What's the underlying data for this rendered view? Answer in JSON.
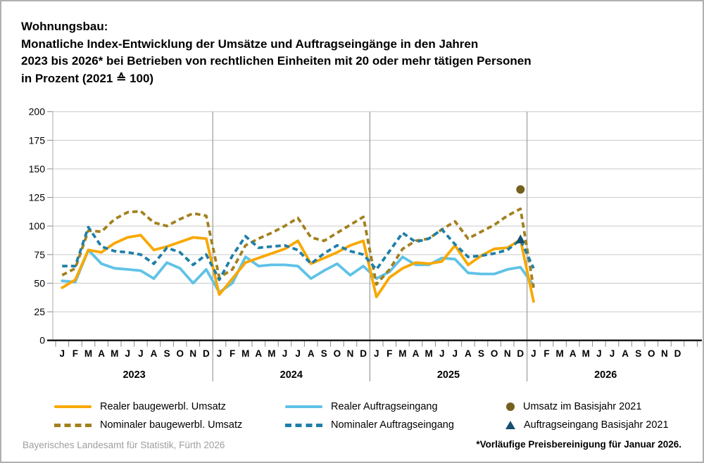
{
  "title": {
    "line1": "Wohnungsbau:",
    "line2": "Monatliche Index-Entwicklung der Umsätze und Auftragseingänge in den Jahren",
    "line3": "2023 bis 2026* bei Betrieben von rechtlichen Einheiten mit 20 oder mehr tätigen Personen",
    "line4": "in Prozent (2021 ≙ 100)"
  },
  "source": "Bayerisches Landesamt für Statistik, Fürth 2026",
  "footnote": "*Vorläufige Preisbereinigung für Januar 2026.",
  "style_colors": {
    "grid": "#C9C9C9",
    "year_separator": "#9B9B9B",
    "axis_line": "#1A1A1A",
    "y_axis_line": "#ABABAB",
    "tick": "#8A8A8A",
    "source_text": "#9E9E9E"
  },
  "chart_data": {
    "type": "line",
    "title": "Wohnungsbau: Monatliche Index-Entwicklung der Umsätze und Auftragseingänge 2023 bis 2026, in Prozent (2021 ≙ 100)",
    "xlabel": "",
    "ylabel": "",
    "ylim": [
      0,
      200
    ],
    "ytick_step": 25,
    "grid": "horizontal",
    "legend_position": "bottom",
    "month_labels": [
      "J",
      "F",
      "M",
      "A",
      "M",
      "J",
      "J",
      "A",
      "S",
      "O",
      "N",
      "D"
    ],
    "years": [
      "2023",
      "2024",
      "2025",
      "2026"
    ],
    "x_range_note": "monthly values Jan 2023 – Jan 2026",
    "series": [
      {
        "name": "Realer baugewerbl. Umsatz",
        "style": "solid",
        "color": "#F8A800",
        "values": [
          46,
          53,
          79,
          77,
          85,
          90,
          92,
          79,
          82,
          86,
          90,
          89,
          40,
          54,
          68,
          72,
          76,
          80,
          87,
          67,
          72,
          77,
          83,
          87,
          38,
          55,
          63,
          68,
          67,
          69,
          83,
          66,
          74,
          80,
          81,
          88,
          34
        ]
      },
      {
        "name": "Nominaler baugewerbl. Umsatz",
        "style": "dashed",
        "color": "#A2801E",
        "values": [
          57,
          63,
          96,
          95,
          106,
          112,
          113,
          103,
          100,
          106,
          111,
          109,
          55,
          62,
          83,
          89,
          94,
          100,
          107,
          90,
          87,
          94,
          101,
          108,
          49,
          62,
          80,
          87,
          89,
          97,
          104,
          89,
          95,
          101,
          109,
          115,
          46
        ]
      },
      {
        "name": "Realer Auftragseingang",
        "style": "solid",
        "color": "#5FC2E7",
        "values": [
          52,
          51,
          79,
          67,
          63,
          62,
          61,
          54,
          68,
          63,
          50,
          62,
          42,
          50,
          73,
          65,
          66,
          66,
          65,
          54,
          61,
          67,
          57,
          65,
          54,
          60,
          73,
          66,
          66,
          72,
          71,
          59,
          58,
          58,
          62,
          64,
          48
        ]
      },
      {
        "name": "Nominaler Auftragseingang",
        "style": "dashed",
        "color": "#1F7FA8",
        "values": [
          65,
          65,
          99,
          82,
          78,
          77,
          75,
          67,
          81,
          77,
          66,
          75,
          53,
          74,
          91,
          81,
          82,
          83,
          79,
          67,
          76,
          83,
          78,
          75,
          62,
          78,
          94,
          86,
          89,
          97,
          84,
          73,
          74,
          76,
          79,
          88,
          63
        ]
      }
    ],
    "markers": [
      {
        "name": "Umsatz im Basisjahr 2021",
        "shape": "circle",
        "color": "#75601E",
        "month_index": 35,
        "month": "Dezember 2025",
        "value": 132
      },
      {
        "name": "Auftragseingang Basisjahr 2021",
        "shape": "triangle",
        "color": "#17506E",
        "month_index": 35,
        "month": "Dezember 2025",
        "value": 88
      }
    ]
  }
}
